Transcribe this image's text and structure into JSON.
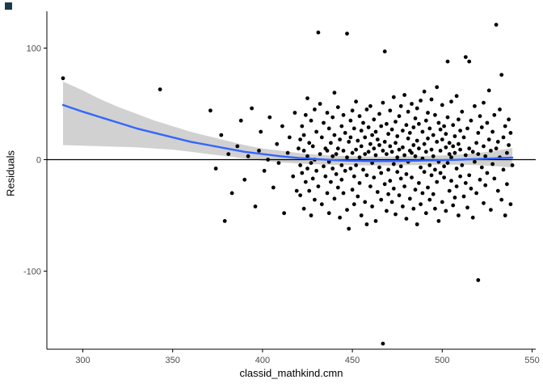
{
  "decor": {
    "corner_square_color": "#1b3a4c"
  },
  "chart_data": {
    "type": "scatter",
    "title": "",
    "xlabel": "classid_mathkind.cmn",
    "ylabel": "Residuals",
    "xlim": [
      280,
      552
    ],
    "ylim": [
      -170,
      133
    ],
    "x_ticks": [
      300,
      350,
      400,
      450,
      500,
      550
    ],
    "y_ticks": [
      -100,
      0,
      100
    ],
    "grid": false,
    "legend": false,
    "reference_line_y": 0,
    "colors": {
      "point": "#000000",
      "smooth": "#3366FF",
      "band": "#999999",
      "band_opacity": 0.45
    },
    "smooth_line": [
      [
        289,
        49
      ],
      [
        300,
        43
      ],
      [
        310,
        38
      ],
      [
        320,
        33
      ],
      [
        330,
        28
      ],
      [
        340,
        24
      ],
      [
        350,
        20
      ],
      [
        360,
        16
      ],
      [
        370,
        13
      ],
      [
        380,
        10
      ],
      [
        390,
        7
      ],
      [
        400,
        5
      ],
      [
        410,
        3
      ],
      [
        420,
        1.5
      ],
      [
        430,
        0.5
      ],
      [
        440,
        -0.5
      ],
      [
        450,
        -1
      ],
      [
        460,
        -1.3
      ],
      [
        470,
        -1.3
      ],
      [
        480,
        -1.1
      ],
      [
        490,
        -0.8
      ],
      [
        500,
        -0.5
      ],
      [
        510,
        0
      ],
      [
        520,
        0.6
      ],
      [
        530,
        1.2
      ],
      [
        539,
        1.8
      ]
    ],
    "band_upper": [
      [
        289,
        70
      ],
      [
        300,
        62
      ],
      [
        310,
        54
      ],
      [
        320,
        47
      ],
      [
        330,
        41
      ],
      [
        340,
        35
      ],
      [
        350,
        30
      ],
      [
        360,
        25
      ],
      [
        370,
        21
      ],
      [
        380,
        17
      ],
      [
        390,
        13
      ],
      [
        400,
        10
      ],
      [
        410,
        8
      ],
      [
        420,
        6
      ],
      [
        430,
        4.5
      ],
      [
        440,
        3.5
      ],
      [
        450,
        3
      ],
      [
        460,
        2.8
      ],
      [
        470,
        2.8
      ],
      [
        480,
        3
      ],
      [
        490,
        3.3
      ],
      [
        500,
        3.8
      ],
      [
        510,
        4.6
      ],
      [
        520,
        6
      ],
      [
        530,
        8
      ],
      [
        539,
        10.5
      ]
    ],
    "band_lower": [
      [
        289,
        13
      ],
      [
        300,
        12.5
      ],
      [
        310,
        12
      ],
      [
        320,
        11.5
      ],
      [
        330,
        11
      ],
      [
        340,
        10
      ],
      [
        350,
        9
      ],
      [
        360,
        7
      ],
      [
        370,
        5
      ],
      [
        380,
        3
      ],
      [
        390,
        1
      ],
      [
        400,
        -1
      ],
      [
        410,
        -2.5
      ],
      [
        420,
        -3.5
      ],
      [
        430,
        -4.2
      ],
      [
        440,
        -4.8
      ],
      [
        450,
        -5
      ],
      [
        460,
        -5.2
      ],
      [
        470,
        -5.2
      ],
      [
        480,
        -5
      ],
      [
        490,
        -4.8
      ],
      [
        500,
        -4.6
      ],
      [
        510,
        -4.6
      ],
      [
        520,
        -5
      ],
      [
        530,
        -6
      ],
      [
        539,
        -7
      ]
    ],
    "points": [
      [
        289,
        73
      ],
      [
        343,
        63
      ],
      [
        371,
        44
      ],
      [
        374,
        -8
      ],
      [
        377,
        22
      ],
      [
        379,
        -55
      ],
      [
        381,
        5
      ],
      [
        383,
        -30
      ],
      [
        386,
        12
      ],
      [
        388,
        35
      ],
      [
        390,
        -18
      ],
      [
        392,
        3
      ],
      [
        394,
        46
      ],
      [
        396,
        -42
      ],
      [
        398,
        8
      ],
      [
        399,
        25
      ],
      [
        401,
        -10
      ],
      [
        403,
        0
      ],
      [
        404,
        38
      ],
      [
        406,
        -25
      ],
      [
        408,
        14
      ],
      [
        409,
        -3
      ],
      [
        411,
        30
      ],
      [
        412,
        -48
      ],
      [
        414,
        6
      ],
      [
        415,
        20
      ],
      [
        417,
        -15
      ],
      [
        418,
        42
      ],
      [
        419,
        -28
      ],
      [
        420,
        10
      ],
      [
        421,
        -5
      ],
      [
        421,
        18
      ],
      [
        421,
        -32
      ],
      [
        422,
        30
      ],
      [
        422,
        -12
      ],
      [
        423,
        8
      ],
      [
        423,
        -44
      ],
      [
        423,
        22
      ],
      [
        424,
        -20
      ],
      [
        424,
        40
      ],
      [
        425,
        3
      ],
      [
        425,
        -8
      ],
      [
        425,
        55
      ],
      [
        426,
        -28
      ],
      [
        426,
        15
      ],
      [
        427,
        35
      ],
      [
        427,
        -3
      ],
      [
        427,
        -50
      ],
      [
        428,
        12
      ],
      [
        428,
        -17
      ],
      [
        429,
        45
      ],
      [
        429,
        0
      ],
      [
        429,
        -36
      ],
      [
        430,
        -10
      ],
      [
        430,
        25
      ],
      [
        431,
        114
      ],
      [
        431,
        -24
      ],
      [
        432,
        50
      ],
      [
        432,
        5
      ],
      [
        433,
        -40
      ],
      [
        433,
        20
      ],
      [
        434,
        -6
      ],
      [
        434,
        33
      ],
      [
        435,
        -15
      ],
      [
        435,
        10
      ],
      [
        436,
        -30
      ],
      [
        436,
        8
      ],
      [
        436,
        42
      ],
      [
        437,
        -2
      ],
      [
        437,
        28
      ],
      [
        437,
        -48
      ],
      [
        438,
        15
      ],
      [
        438,
        -20
      ],
      [
        439,
        38
      ],
      [
        439,
        -8
      ],
      [
        439,
        3
      ],
      [
        440,
        -35
      ],
      [
        440,
        22
      ],
      [
        440,
        60
      ],
      [
        441,
        -13
      ],
      [
        441,
        5
      ],
      [
        442,
        47
      ],
      [
        442,
        -25
      ],
      [
        442,
        10
      ],
      [
        443,
        -52
      ],
      [
        443,
        18
      ],
      [
        444,
        30
      ],
      [
        444,
        -5
      ],
      [
        444,
        -18
      ],
      [
        445,
        8
      ],
      [
        445,
        40
      ],
      [
        445,
        -30
      ],
      [
        446,
        -10
      ],
      [
        446,
        24
      ],
      [
        447,
        113
      ],
      [
        447,
        -45
      ],
      [
        447,
        2
      ],
      [
        448,
        16
      ],
      [
        448,
        -62
      ],
      [
        449,
        35
      ],
      [
        449,
        -8
      ],
      [
        449,
        20
      ],
      [
        450,
        -27
      ],
      [
        450,
        6
      ],
      [
        450,
        44
      ],
      [
        451,
        -15
      ],
      [
        451,
        28
      ],
      [
        451,
        -40
      ],
      [
        452,
        9
      ],
      [
        452,
        52
      ],
      [
        452,
        -5
      ],
      [
        453,
        -33
      ],
      [
        453,
        17
      ],
      [
        454,
        2
      ],
      [
        454,
        -21
      ],
      [
        454,
        39
      ],
      [
        455,
        -50
      ],
      [
        455,
        12
      ],
      [
        455,
        26
      ],
      [
        456,
        -9
      ],
      [
        456,
        33
      ],
      [
        457,
        20
      ],
      [
        457,
        -38
      ],
      [
        457,
        5
      ],
      [
        458,
        45
      ],
      [
        458,
        -14
      ],
      [
        458,
        -58
      ],
      [
        459,
        7
      ],
      [
        459,
        29
      ],
      [
        460,
        -24
      ],
      [
        460,
        14
      ],
      [
        460,
        48
      ],
      [
        461,
        -3
      ],
      [
        461,
        -42
      ],
      [
        461,
        22
      ],
      [
        462,
        36
      ],
      [
        462,
        10
      ],
      [
        462,
        -16
      ],
      [
        463,
        -55
      ],
      [
        463,
        25
      ],
      [
        463,
        4
      ],
      [
        464,
        18
      ],
      [
        464,
        -29
      ],
      [
        465,
        41
      ],
      [
        465,
        -7
      ],
      [
        465,
        13
      ],
      [
        466,
        -36
      ],
      [
        466,
        30
      ],
      [
        466,
        -12
      ],
      [
        467,
        -165
      ],
      [
        467,
        8
      ],
      [
        467,
        51
      ],
      [
        468,
        97
      ],
      [
        468,
        -22
      ],
      [
        468,
        16
      ],
      [
        469,
        -46
      ],
      [
        469,
        5
      ],
      [
        469,
        32
      ],
      [
        470,
        23
      ],
      [
        470,
        -9
      ],
      [
        470,
        -31
      ],
      [
        471,
        12
      ],
      [
        471,
        44
      ],
      [
        471,
        -19
      ],
      [
        472,
        -38
      ],
      [
        472,
        7
      ],
      [
        472,
        27
      ],
      [
        473,
        56
      ],
      [
        473,
        -4
      ],
      [
        473,
        -26
      ],
      [
        474,
        15
      ],
      [
        474,
        34
      ],
      [
        474,
        -49
      ],
      [
        475,
        -11
      ],
      [
        475,
        21
      ],
      [
        475,
        2
      ],
      [
        476,
        39
      ],
      [
        476,
        -32
      ],
      [
        476,
        9
      ],
      [
        477,
        -6
      ],
      [
        477,
        48
      ],
      [
        477,
        -17
      ],
      [
        478,
        26
      ],
      [
        478,
        -42
      ],
      [
        478,
        11
      ],
      [
        479,
        -24
      ],
      [
        479,
        58
      ],
      [
        479,
        4
      ],
      [
        480,
        31
      ],
      [
        480,
        -13
      ],
      [
        480,
        -53
      ],
      [
        481,
        19
      ],
      [
        481,
        43
      ],
      [
        481,
        -2
      ],
      [
        482,
        -35
      ],
      [
        482,
        8
      ],
      [
        482,
        24
      ],
      [
        483,
        50
      ],
      [
        483,
        -16
      ],
      [
        483,
        6
      ],
      [
        484,
        -44
      ],
      [
        484,
        29
      ],
      [
        484,
        13
      ],
      [
        485,
        3
      ],
      [
        485,
        -27
      ],
      [
        485,
        37
      ],
      [
        486,
        -58
      ],
      [
        486,
        17
      ],
      [
        486,
        46
      ],
      [
        487,
        10
      ],
      [
        487,
        -21
      ],
      [
        487,
        32
      ],
      [
        488,
        -40
      ],
      [
        488,
        53
      ],
      [
        488,
        -7
      ],
      [
        489,
        25
      ],
      [
        489,
        1
      ],
      [
        489,
        -30
      ],
      [
        490,
        61
      ],
      [
        490,
        -11
      ],
      [
        490,
        14
      ],
      [
        491,
        -48
      ],
      [
        491,
        35
      ],
      [
        491,
        7
      ],
      [
        492,
        19
      ],
      [
        492,
        -25
      ],
      [
        492,
        42
      ],
      [
        493,
        -5
      ],
      [
        493,
        28
      ],
      [
        493,
        -36
      ],
      [
        494,
        54
      ],
      [
        494,
        9
      ],
      [
        494,
        -14
      ],
      [
        495,
        -31
      ],
      [
        495,
        22
      ],
      [
        495,
        3
      ],
      [
        496,
        40
      ],
      [
        496,
        -9
      ],
      [
        496,
        -44
      ],
      [
        497,
        16
      ],
      [
        497,
        65
      ],
      [
        497,
        -20
      ],
      [
        498,
        -2
      ],
      [
        498,
        33
      ],
      [
        498,
        -55
      ],
      [
        499,
        27
      ],
      [
        499,
        -12
      ],
      [
        499,
        8
      ],
      [
        500,
        49
      ],
      [
        500,
        -38
      ],
      [
        500,
        18
      ],
      [
        501,
        -6
      ],
      [
        501,
        30
      ],
      [
        501,
        -16
      ],
      [
        502,
        11
      ],
      [
        502,
        -46
      ],
      [
        502,
        23
      ],
      [
        503,
        88
      ],
      [
        503,
        38
      ],
      [
        503,
        -3
      ],
      [
        504,
        -28
      ],
      [
        504,
        15
      ],
      [
        504,
        5
      ],
      [
        505,
        52
      ],
      [
        505,
        -19
      ],
      [
        505,
        2
      ],
      [
        506,
        -41
      ],
      [
        506,
        12
      ],
      [
        506,
        31
      ],
      [
        507,
        6
      ],
      [
        507,
        -34
      ],
      [
        507,
        21
      ],
      [
        508,
        57
      ],
      [
        508,
        -8
      ],
      [
        508,
        -24
      ],
      [
        509,
        14
      ],
      [
        509,
        36
      ],
      [
        509,
        -50
      ],
      [
        510,
        -15
      ],
      [
        510,
        26
      ],
      [
        510,
        9
      ],
      [
        511,
        43
      ],
      [
        511,
        -5
      ],
      [
        512,
        -33
      ],
      [
        512,
        20
      ],
      [
        513,
        92
      ],
      [
        513,
        4
      ],
      [
        513,
        -21
      ],
      [
        514,
        28
      ],
      [
        514,
        -43
      ],
      [
        515,
        88
      ],
      [
        515,
        10
      ],
      [
        515,
        -14
      ],
      [
        516,
        -26
      ],
      [
        516,
        35
      ],
      [
        517,
        7
      ],
      [
        517,
        -52
      ],
      [
        518,
        48
      ],
      [
        518,
        -2
      ],
      [
        519,
        15
      ],
      [
        519,
        -30
      ],
      [
        520,
        -108
      ],
      [
        520,
        24
      ],
      [
        520,
        5
      ],
      [
        521,
        39
      ],
      [
        521,
        -18
      ],
      [
        522,
        -7
      ],
      [
        522,
        29
      ],
      [
        523,
        51
      ],
      [
        523,
        -39
      ],
      [
        523,
        12
      ],
      [
        524,
        -23
      ],
      [
        524,
        3
      ],
      [
        525,
        33
      ],
      [
        525,
        -12
      ],
      [
        526,
        62
      ],
      [
        526,
        18
      ],
      [
        527,
        -45
      ],
      [
        527,
        8
      ],
      [
        528,
        25
      ],
      [
        528,
        -4
      ],
      [
        529,
        -17
      ],
      [
        529,
        40
      ],
      [
        530,
        121
      ],
      [
        530,
        10
      ],
      [
        531,
        -28
      ],
      [
        531,
        16
      ],
      [
        532,
        45
      ],
      [
        532,
        2
      ],
      [
        533,
        76
      ],
      [
        533,
        -36
      ],
      [
        534,
        20
      ],
      [
        534,
        -9
      ],
      [
        535,
        -50
      ],
      [
        535,
        30
      ],
      [
        536,
        6
      ],
      [
        536,
        -22
      ],
      [
        537,
        36
      ],
      [
        537,
        13
      ],
      [
        538,
        -40
      ],
      [
        538,
        24
      ],
      [
        539,
        -5
      ]
    ]
  }
}
